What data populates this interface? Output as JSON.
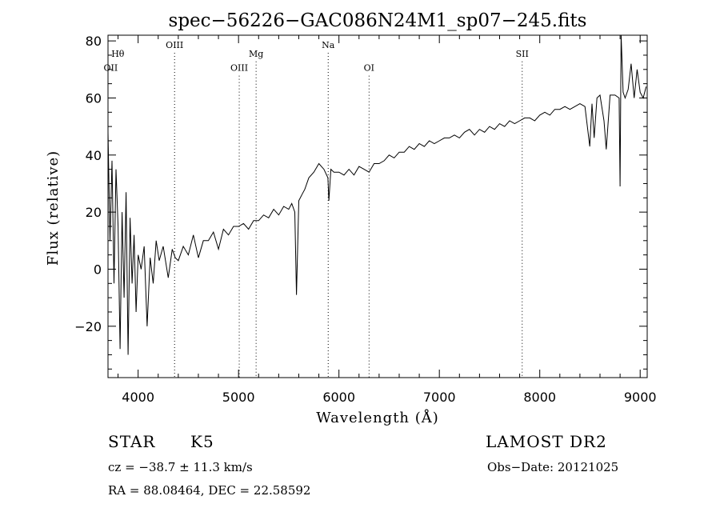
{
  "chart_data": {
    "type": "line",
    "title": "spec−56226−GAC086N24M1_sp07−245.fits",
    "xlabel": "Wavelength (Å)",
    "ylabel": "Flux (relative)",
    "xlim": [
      3700,
      9070
    ],
    "ylim": [
      -38,
      82
    ],
    "x_ticks": [
      4000,
      5000,
      6000,
      7000,
      8000,
      9000
    ],
    "y_ticks": [
      -20,
      0,
      20,
      40,
      60,
      80
    ],
    "y_tick_labels": [
      "−20",
      "0",
      "20",
      "40",
      "60",
      "80"
    ],
    "line_color": "#000000",
    "grid": false,
    "spectral_lines": [
      {
        "label": "OII",
        "wavelength": 3727,
        "label_y": 69.5,
        "dotted": false
      },
      {
        "label": "Hθ",
        "wavelength": 3798,
        "label_y": 74.5,
        "dotted": false
      },
      {
        "label": "OIII",
        "wavelength": 4363,
        "label_y": 77.5,
        "dotted": true
      },
      {
        "label": "OIII",
        "wavelength": 5007,
        "label_y": 69.5,
        "dotted": true
      },
      {
        "label": "Mg",
        "wavelength": 5175,
        "label_y": 74.5,
        "dotted": true
      },
      {
        "label": "Na",
        "wavelength": 5893,
        "label_y": 77.5,
        "dotted": true
      },
      {
        "label": "OI",
        "wavelength": 6300,
        "label_y": 69.5,
        "dotted": true
      },
      {
        "label": "SII",
        "wavelength": 7825,
        "label_y": 74.5,
        "dotted": true
      }
    ],
    "series": [
      {
        "x": [
          3700,
          3720,
          3740,
          3760,
          3780,
          3800,
          3820,
          3840,
          3860,
          3880,
          3900,
          3920,
          3940,
          3960,
          3980,
          4000,
          4030,
          4060,
          4090,
          4120,
          4150,
          4180,
          4210,
          4250,
          4300,
          4340,
          4370,
          4400,
          4450,
          4500,
          4550,
          4600,
          4650,
          4700,
          4750,
          4800,
          4850,
          4900,
          4950,
          5000,
          5050,
          5100,
          5150,
          5200,
          5250,
          5300,
          5350,
          5400,
          5450,
          5500,
          5530,
          5560,
          5577,
          5600,
          5630,
          5660,
          5700,
          5750,
          5800,
          5850,
          5890,
          5900,
          5920,
          5950,
          6000,
          6050,
          6100,
          6150,
          6200,
          6250,
          6300,
          6350,
          6400,
          6450,
          6500,
          6550,
          6600,
          6650,
          6700,
          6750,
          6800,
          6850,
          6900,
          6950,
          7000,
          7050,
          7100,
          7150,
          7200,
          7250,
          7300,
          7350,
          7400,
          7450,
          7500,
          7550,
          7600,
          7650,
          7700,
          7750,
          7800,
          7850,
          7900,
          7950,
          8000,
          8050,
          8100,
          8150,
          8200,
          8250,
          8300,
          8350,
          8400,
          8450,
          8498,
          8520,
          8542,
          8570,
          8600,
          8640,
          8662,
          8700,
          8750,
          8790,
          8800,
          8810,
          8830,
          8850,
          8880,
          8910,
          8940,
          8970,
          9000,
          9030,
          9060
        ],
        "y": [
          48,
          10,
          38,
          -5,
          35,
          15,
          -28,
          20,
          -10,
          27,
          -30,
          18,
          -5,
          12,
          -15,
          5,
          0,
          8,
          -20,
          4,
          -5,
          10,
          3,
          8,
          -3,
          7,
          4,
          3,
          8,
          5,
          12,
          4,
          10,
          10,
          13,
          7,
          14,
          12,
          15,
          15,
          16,
          14,
          17,
          17,
          19,
          18,
          21,
          19,
          22,
          21,
          23,
          20,
          -9,
          24,
          26,
          28,
          32,
          34,
          37,
          35,
          32,
          24,
          35,
          34,
          34,
          33,
          35,
          33,
          36,
          35,
          34,
          37,
          37,
          38,
          40,
          39,
          41,
          41,
          43,
          42,
          44,
          43,
          45,
          44,
          45,
          46,
          46,
          47,
          46,
          48,
          49,
          47,
          49,
          48,
          50,
          49,
          51,
          50,
          52,
          51,
          52,
          53,
          53,
          52,
          54,
          55,
          54,
          56,
          56,
          57,
          56,
          57,
          58,
          57,
          43,
          58,
          46,
          60,
          61,
          52,
          42,
          61,
          61,
          60,
          29,
          82,
          62,
          60,
          63,
          72,
          60,
          70,
          62,
          60,
          64
        ]
      }
    ]
  },
  "info": {
    "object_type": "STAR",
    "subclass": "K5",
    "survey": "LAMOST DR2",
    "cz": "cz = −38.7 ± 11.3 km/s",
    "obs_date": "Obs−Date: 20121025",
    "coords": "RA =  88.08464, DEC =  22.58592"
  }
}
